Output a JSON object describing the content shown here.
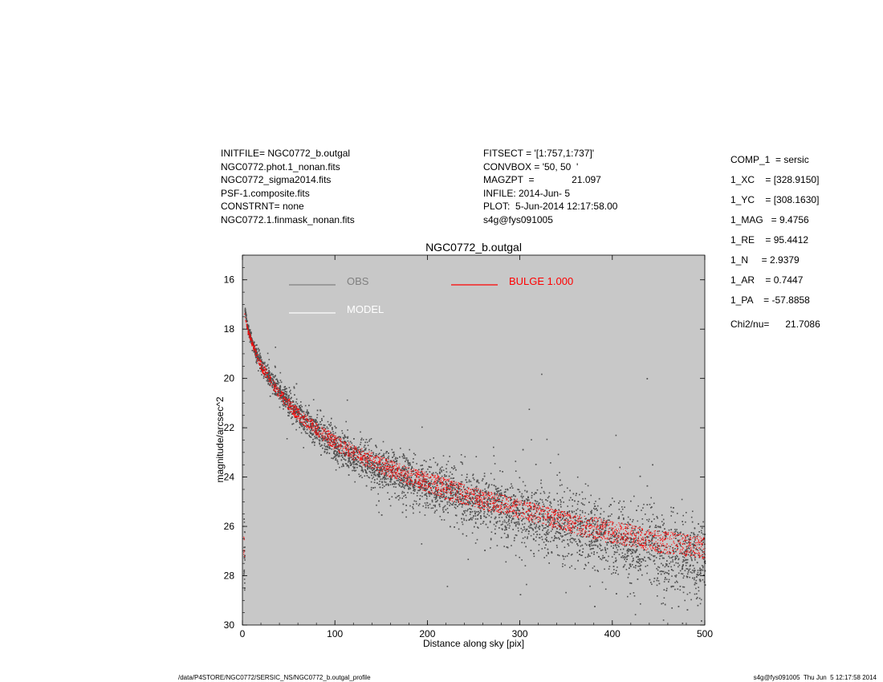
{
  "header": {
    "left_lines": [
      "INITFILE= NGC0772_b.outgal",
      "NGC0772.phot.1_nonan.fits",
      "NGC0772_sigma2014.fits",
      "PSF-1.composite.fits",
      "CONSTRNT= none",
      "NGC0772.1.finmask_nonan.fits"
    ],
    "mid_lines": [
      "FITSECT = '[1:757,1:737]'",
      "CONVBOX = '50, 50  '",
      "MAGZPT  =              21.097",
      "INFILE: 2014-Jun- 5",
      "PLOT:  5-Jun-2014 12:17:58.00",
      "s4g@fys091005"
    ]
  },
  "components": {
    "lines": [
      "COMP_1  = sersic",
      "1_XC    = [328.9150]",
      "1_YC    = [308.1630]",
      "1_MAG   = 9.4756",
      "1_RE    = 95.4412",
      "1_N     = 2.9379",
      "1_AR    = 0.7447",
      "1_PA    = -57.8858"
    ],
    "chi": "Chi2/nu=      21.7086"
  },
  "footer": {
    "left": "/data/P4STORE/NGC0772/SERSIC_NS/NGC0772_b.outgal_profile",
    "right": "s4g@fys091005  Thu Jun  5 12:17:58 2014"
  },
  "chart_data": {
    "type": "scatter",
    "title": "NGC0772_b.outgal",
    "xlabel": "Distance along sky [pix]",
    "ylabel": "magnitude/arcsec^2",
    "xlim": [
      0,
      500
    ],
    "ylim": [
      30,
      15
    ],
    "y_inverted": true,
    "xticks": [
      0,
      100,
      200,
      300,
      400,
      500
    ],
    "yticks": [
      16,
      18,
      20,
      22,
      24,
      26,
      28,
      30
    ],
    "background": "#c8c8c8",
    "legend": [
      {
        "label": "OBS",
        "color": "#808080"
      },
      {
        "label": "MODEL",
        "color": "#ffffff"
      },
      {
        "label": "BULGE  1.000",
        "color": "#ff0000"
      }
    ],
    "series": [
      {
        "name": "OBS",
        "color": "#505050",
        "x": [
          2,
          5,
          10,
          15,
          20,
          30,
          40,
          50,
          60,
          70,
          80,
          90,
          100,
          120,
          140,
          160,
          180,
          200,
          220,
          240,
          260,
          280,
          300,
          320,
          340,
          360,
          380,
          400,
          420,
          440,
          460,
          480,
          500
        ],
        "y": [
          17.1,
          17.9,
          18.5,
          19.0,
          19.4,
          20.0,
          20.5,
          21.0,
          21.4,
          21.8,
          22.1,
          22.4,
          22.7,
          23.1,
          23.5,
          23.8,
          24.1,
          24.3,
          24.6,
          24.8,
          25.0,
          25.2,
          25.5,
          25.7,
          25.9,
          26.1,
          26.3,
          26.5,
          26.7,
          26.9,
          27.1,
          27.2,
          27.3
        ],
        "y_spread": [
          0.1,
          0.15,
          0.2,
          0.25,
          0.3,
          0.35,
          0.4,
          0.45,
          0.5,
          0.55,
          0.6,
          0.6,
          0.65,
          0.7,
          0.75,
          0.8,
          0.85,
          0.9,
          0.95,
          1.0,
          1.05,
          1.1,
          1.15,
          1.2,
          1.25,
          1.3,
          1.35,
          1.4,
          1.45,
          1.5,
          1.5,
          1.5,
          1.5
        ]
      },
      {
        "name": "BULGE",
        "color": "#ff0000",
        "x": [
          2,
          5,
          10,
          15,
          20,
          30,
          40,
          50,
          60,
          70,
          80,
          90,
          100,
          120,
          140,
          160,
          180,
          200,
          220,
          240,
          260,
          280,
          300,
          320,
          340,
          360,
          380,
          400,
          420,
          440,
          460,
          480,
          500
        ],
        "y_upper": [
          17.3,
          17.9,
          18.4,
          18.9,
          19.3,
          19.9,
          20.4,
          20.8,
          21.2,
          21.5,
          21.8,
          22.0,
          22.3,
          22.7,
          23.0,
          23.3,
          23.6,
          23.8,
          24.0,
          24.3,
          24.5,
          24.7,
          24.9,
          25.1,
          25.3,
          25.5,
          25.6,
          25.8,
          25.9,
          26.1,
          26.2,
          26.3,
          26.4
        ],
        "y_lower": [
          17.4,
          18.1,
          18.7,
          19.2,
          19.7,
          20.3,
          20.8,
          21.3,
          21.7,
          22.0,
          22.3,
          22.6,
          22.9,
          23.3,
          23.7,
          24.0,
          24.3,
          24.6,
          24.9,
          25.1,
          25.3,
          25.5,
          25.7,
          25.9,
          26.1,
          26.3,
          26.5,
          26.7,
          26.8,
          27.0,
          27.1,
          27.2,
          27.3
        ]
      }
    ]
  }
}
